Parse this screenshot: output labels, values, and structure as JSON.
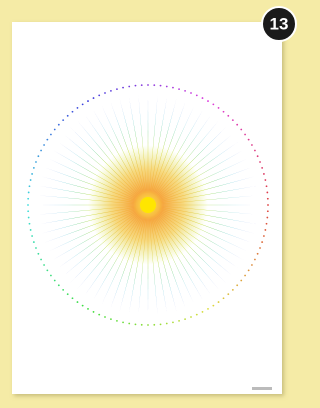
{
  "badge": "13"
}
